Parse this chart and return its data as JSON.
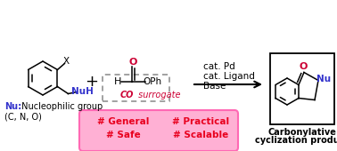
{
  "bg_color": "#ffffff",
  "pink_box_color": "#ff69b4",
  "pink_box_face": "#ffb0d4",
  "red_text_color": "#e8001e",
  "blue_text_color": "#3333cc",
  "crimson_color": "#cc0033",
  "orange_color": "#e07020",
  "cat_text_lines": [
    "cat. Pd",
    "cat. Ligand",
    "Base"
  ],
  "carbonylative_line1": "Carbonylative",
  "carbonylative_line2": "cyclization product",
  "hashtags_left": [
    "# General",
    "# Safe"
  ],
  "hashtags_right": [
    "# Practical",
    "# Scalable"
  ],
  "co_surrogate": "CO surrogate"
}
